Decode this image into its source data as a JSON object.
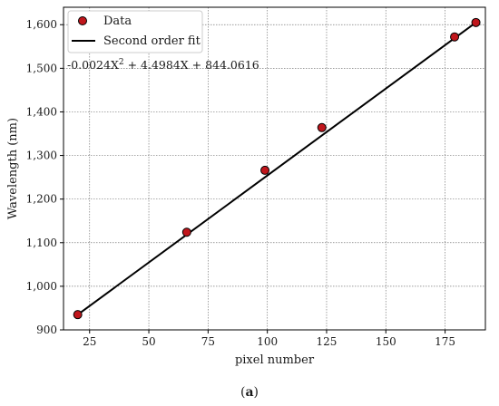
{
  "chart_data": {
    "type": "scatter",
    "xlabel": "pixel number",
    "ylabel": "Wavelength (nm)",
    "xlim": [
      14,
      192
    ],
    "ylim": [
      900,
      1640
    ],
    "x_ticks": [
      25,
      50,
      75,
      100,
      125,
      150,
      175
    ],
    "x_tick_labels": [
      "25",
      "50",
      "75",
      "100",
      "125",
      "150",
      "175"
    ],
    "y_ticks": [
      900,
      1000,
      1100,
      1200,
      1300,
      1400,
      1500,
      1600
    ],
    "y_tick_labels": [
      "900",
      "1,000",
      "1,100",
      "1,200",
      "1,300",
      "1,400",
      "1,500",
      "1,600"
    ],
    "grid": true,
    "legend_position": "top-left",
    "series": [
      {
        "name": "Data",
        "kind": "scatter",
        "color": "#c0161c",
        "x": [
          20,
          66,
          99,
          123,
          179,
          188
        ],
        "y": [
          935,
          1124,
          1266,
          1364,
          1572,
          1605
        ]
      },
      {
        "name": "Second order fit",
        "kind": "line",
        "color": "#000000",
        "x": [
          20,
          188
        ],
        "y": [
          935,
          1605
        ]
      }
    ],
    "annotation": {
      "prefix": "-0.0024X",
      "sup": "2",
      "suffix": " + 4.4984X + 844.0616"
    }
  },
  "caption": {
    "open": "(",
    "label": "a",
    "close": ")"
  }
}
